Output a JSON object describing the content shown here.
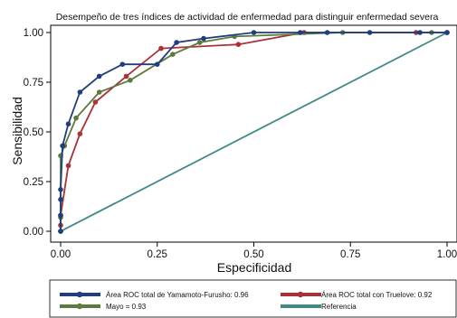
{
  "chart_data": {
    "type": "line",
    "title": "Desempeño de tres índices de actividad de enfermedad para distinguir enfermedad severa",
    "xlabel": "Especificidad",
    "ylabel": "Sensibilidad",
    "xlim": [
      0,
      1
    ],
    "ylim": [
      0,
      1
    ],
    "x_ticks": [
      "0.00",
      "0.25",
      "0.50",
      "0.75",
      "1.00"
    ],
    "y_ticks": [
      "0.00",
      "0.25",
      "0.50",
      "0.75",
      "1.00"
    ],
    "grid": false,
    "legend_position": "bottom",
    "series": [
      {
        "name": "Área ROC total de Yamamoto-Furusho: 0.96",
        "color": "#1f3e7c",
        "marker": true,
        "points": [
          [
            0,
            0
          ],
          [
            0,
            0.08
          ],
          [
            0,
            0.16
          ],
          [
            0,
            0.21
          ],
          [
            0.005,
            0.43
          ],
          [
            0.02,
            0.54
          ],
          [
            0.05,
            0.7
          ],
          [
            0.1,
            0.78
          ],
          [
            0.16,
            0.84
          ],
          [
            0.25,
            0.84
          ],
          [
            0.3,
            0.95
          ],
          [
            0.37,
            0.97
          ],
          [
            0.5,
            1.0
          ],
          [
            0.62,
            1.0
          ],
          [
            0.69,
            1.0
          ],
          [
            0.8,
            1.0
          ],
          [
            0.93,
            1.0
          ],
          [
            1.0,
            1.0
          ]
        ]
      },
      {
        "name": "Área ROC total con Truelove: 0.92",
        "color": "#a83238",
        "marker": true,
        "points": [
          [
            0,
            0
          ],
          [
            0,
            0.03
          ],
          [
            0,
            0.08
          ],
          [
            0.02,
            0.33
          ],
          [
            0.05,
            0.49
          ],
          [
            0.09,
            0.65
          ],
          [
            0.17,
            0.78
          ],
          [
            0.26,
            0.92
          ],
          [
            0.46,
            0.94
          ],
          [
            0.63,
            1.0
          ],
          [
            0.92,
            1.0
          ],
          [
            1.0,
            1.0
          ]
        ]
      },
      {
        "name": "Mayo = 0.93",
        "color": "#5c7a3c",
        "marker": true,
        "points": [
          [
            0,
            0
          ],
          [
            0,
            0.07
          ],
          [
            0,
            0.38
          ],
          [
            0.01,
            0.43
          ],
          [
            0.04,
            0.57
          ],
          [
            0.1,
            0.7
          ],
          [
            0.18,
            0.76
          ],
          [
            0.29,
            0.89
          ],
          [
            0.36,
            0.95
          ],
          [
            0.45,
            0.98
          ],
          [
            0.73,
            1.0
          ],
          [
            0.96,
            1.0
          ],
          [
            1.0,
            1.0
          ]
        ]
      },
      {
        "name": "Referencia",
        "color": "#3e8a86",
        "marker": false,
        "points": [
          [
            0,
            0
          ],
          [
            1,
            1
          ]
        ]
      }
    ]
  }
}
